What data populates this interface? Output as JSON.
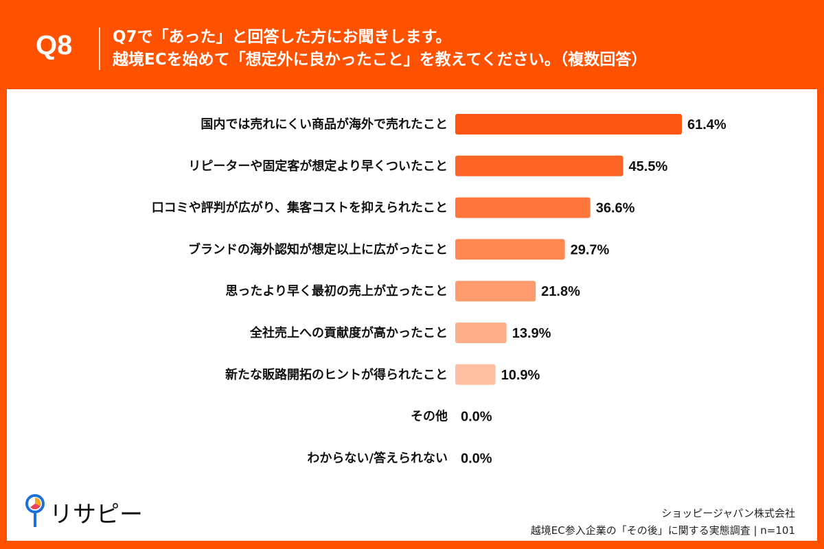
{
  "header": {
    "question_number": "Q8",
    "line1": "Q7で「あった」と回答した方にお聞きします。",
    "line2": "越境ECを始めて「想定外に良かったこと」を教えてください。（複数回答）"
  },
  "colors": {
    "background": "#FF5200",
    "bars": [
      "#FF5512",
      "#FF6527",
      "#FF773D",
      "#FF8852",
      "#FF9B6D",
      "#FFAE8B",
      "#FFBFA2",
      "#FFCDB5",
      "#FFCDB5"
    ]
  },
  "chart_data": {
    "type": "bar",
    "orientation": "horizontal",
    "xlim": [
      0,
      100
    ],
    "grid": false,
    "categories": [
      "国内では売れにくい商品が海外で売れたこと",
      "リピーターや固定客が想定より早くついたこと",
      "口コミや評判が広がり、集客コストを抑えられたこと",
      "ブランドの海外認知が想定以上に広がったこと",
      "思ったより早く最初の売上が立ったこと",
      "全社売上への貢献度が高かったこと",
      "新たな販路開拓のヒントが得られたこと",
      "その他",
      "わからない/答えられない"
    ],
    "values": [
      61.4,
      45.5,
      36.6,
      29.7,
      21.8,
      13.9,
      10.9,
      0.0,
      0.0
    ],
    "value_labels": [
      "61.4%",
      "45.5%",
      "36.6%",
      "29.7%",
      "21.8%",
      "13.9%",
      "10.9%",
      "0.0%",
      "0.0%"
    ]
  },
  "logo": {
    "text": "リサピー"
  },
  "footer": {
    "company": "ショッピージャパン株式会社",
    "survey": "越境EC参入企業の「その後」に関する実態調査 | n=101"
  }
}
